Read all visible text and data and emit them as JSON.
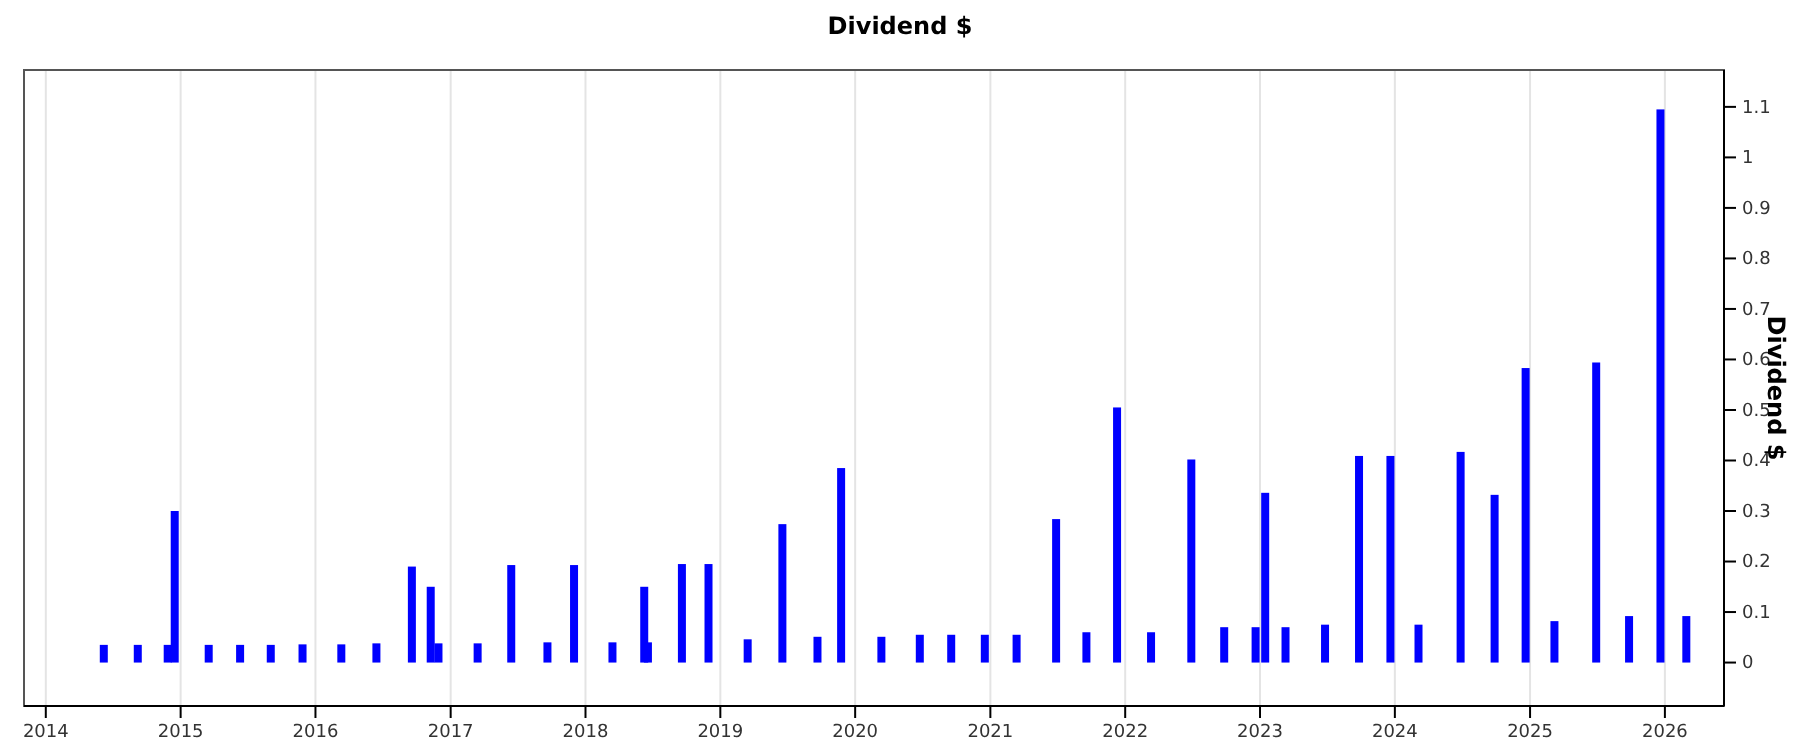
{
  "chart_data": {
    "type": "bar",
    "title": "Dividend $",
    "ylabel": "Dividend $",
    "color": "#0000ff",
    "grid": "x",
    "x": [
      "2014-06-07",
      "2014-09-07",
      "2014-11-27",
      "2014-12-16",
      "2015-03-18",
      "2015-06-11",
      "2015-09-02",
      "2015-11-27",
      "2016-03-11",
      "2016-06-14",
      "2016-09-18",
      "2016-11-08",
      "2016-11-29",
      "2017-03-15",
      "2017-06-14",
      "2017-09-20",
      "2017-12-01",
      "2018-03-15",
      "2018-06-09",
      "2018-06-19",
      "2018-09-19",
      "2018-11-30",
      "2019-03-16",
      "2019-06-18",
      "2019-09-21",
      "2019-11-24",
      "2020-03-12",
      "2020-06-24",
      "2020-09-17",
      "2020-12-17",
      "2021-03-13",
      "2021-06-28",
      "2021-09-18",
      "2021-12-10",
      "2022-03-12",
      "2022-06-29",
      "2022-09-26",
      "2022-12-20",
      "2023-01-15",
      "2023-03-11",
      "2023-06-26",
      "2023-09-26",
      "2023-12-20",
      "2024-03-05",
      "2024-06-27",
      "2024-09-27",
      "2024-12-20",
      "2025-03-08",
      "2025-06-29",
      "2025-09-26",
      "2025-12-20",
      "2026-02-28"
    ],
    "values": [
      0.035,
      0.035,
      0.035,
      0.3,
      0.035,
      0.035,
      0.035,
      0.036,
      0.036,
      0.038,
      0.19,
      0.15,
      0.038,
      0.038,
      0.193,
      0.04,
      0.193,
      0.04,
      0.15,
      0.04,
      0.195,
      0.195,
      0.046,
      0.274,
      0.051,
      0.385,
      0.051,
      0.055,
      0.055,
      0.055,
      0.055,
      0.284,
      0.06,
      0.505,
      0.06,
      0.402,
      0.07,
      0.07,
      0.336,
      0.07,
      0.075,
      0.409,
      0.409,
      0.075,
      0.417,
      0.332,
      0.583,
      0.082,
      0.594,
      0.092,
      1.095,
      0.092
    ],
    "xlim": [
      "2013-11-03",
      "2026-06-10"
    ],
    "xticks": [
      {
        "value": "2014",
        "label": "2014"
      },
      {
        "value": "2015",
        "label": "2015"
      },
      {
        "value": "2016",
        "label": "2016"
      },
      {
        "value": "2017",
        "label": "2017"
      },
      {
        "value": "2018",
        "label": "2018"
      },
      {
        "value": "2019",
        "label": "2019"
      },
      {
        "value": "2020",
        "label": "2020"
      },
      {
        "value": "2021",
        "label": "2021"
      },
      {
        "value": "2022",
        "label": "2022"
      },
      {
        "value": "2023",
        "label": "2023"
      },
      {
        "value": "2024",
        "label": "2024"
      },
      {
        "value": "2025",
        "label": "2025"
      },
      {
        "value": "2026",
        "label": "2026"
      }
    ],
    "ylim": [
      -0.086,
      1.173
    ],
    "yticks": [
      0,
      0.1,
      0.2,
      0.3,
      0.4,
      0.5,
      0.6,
      0.7,
      0.8,
      0.9,
      1,
      1.1
    ]
  }
}
